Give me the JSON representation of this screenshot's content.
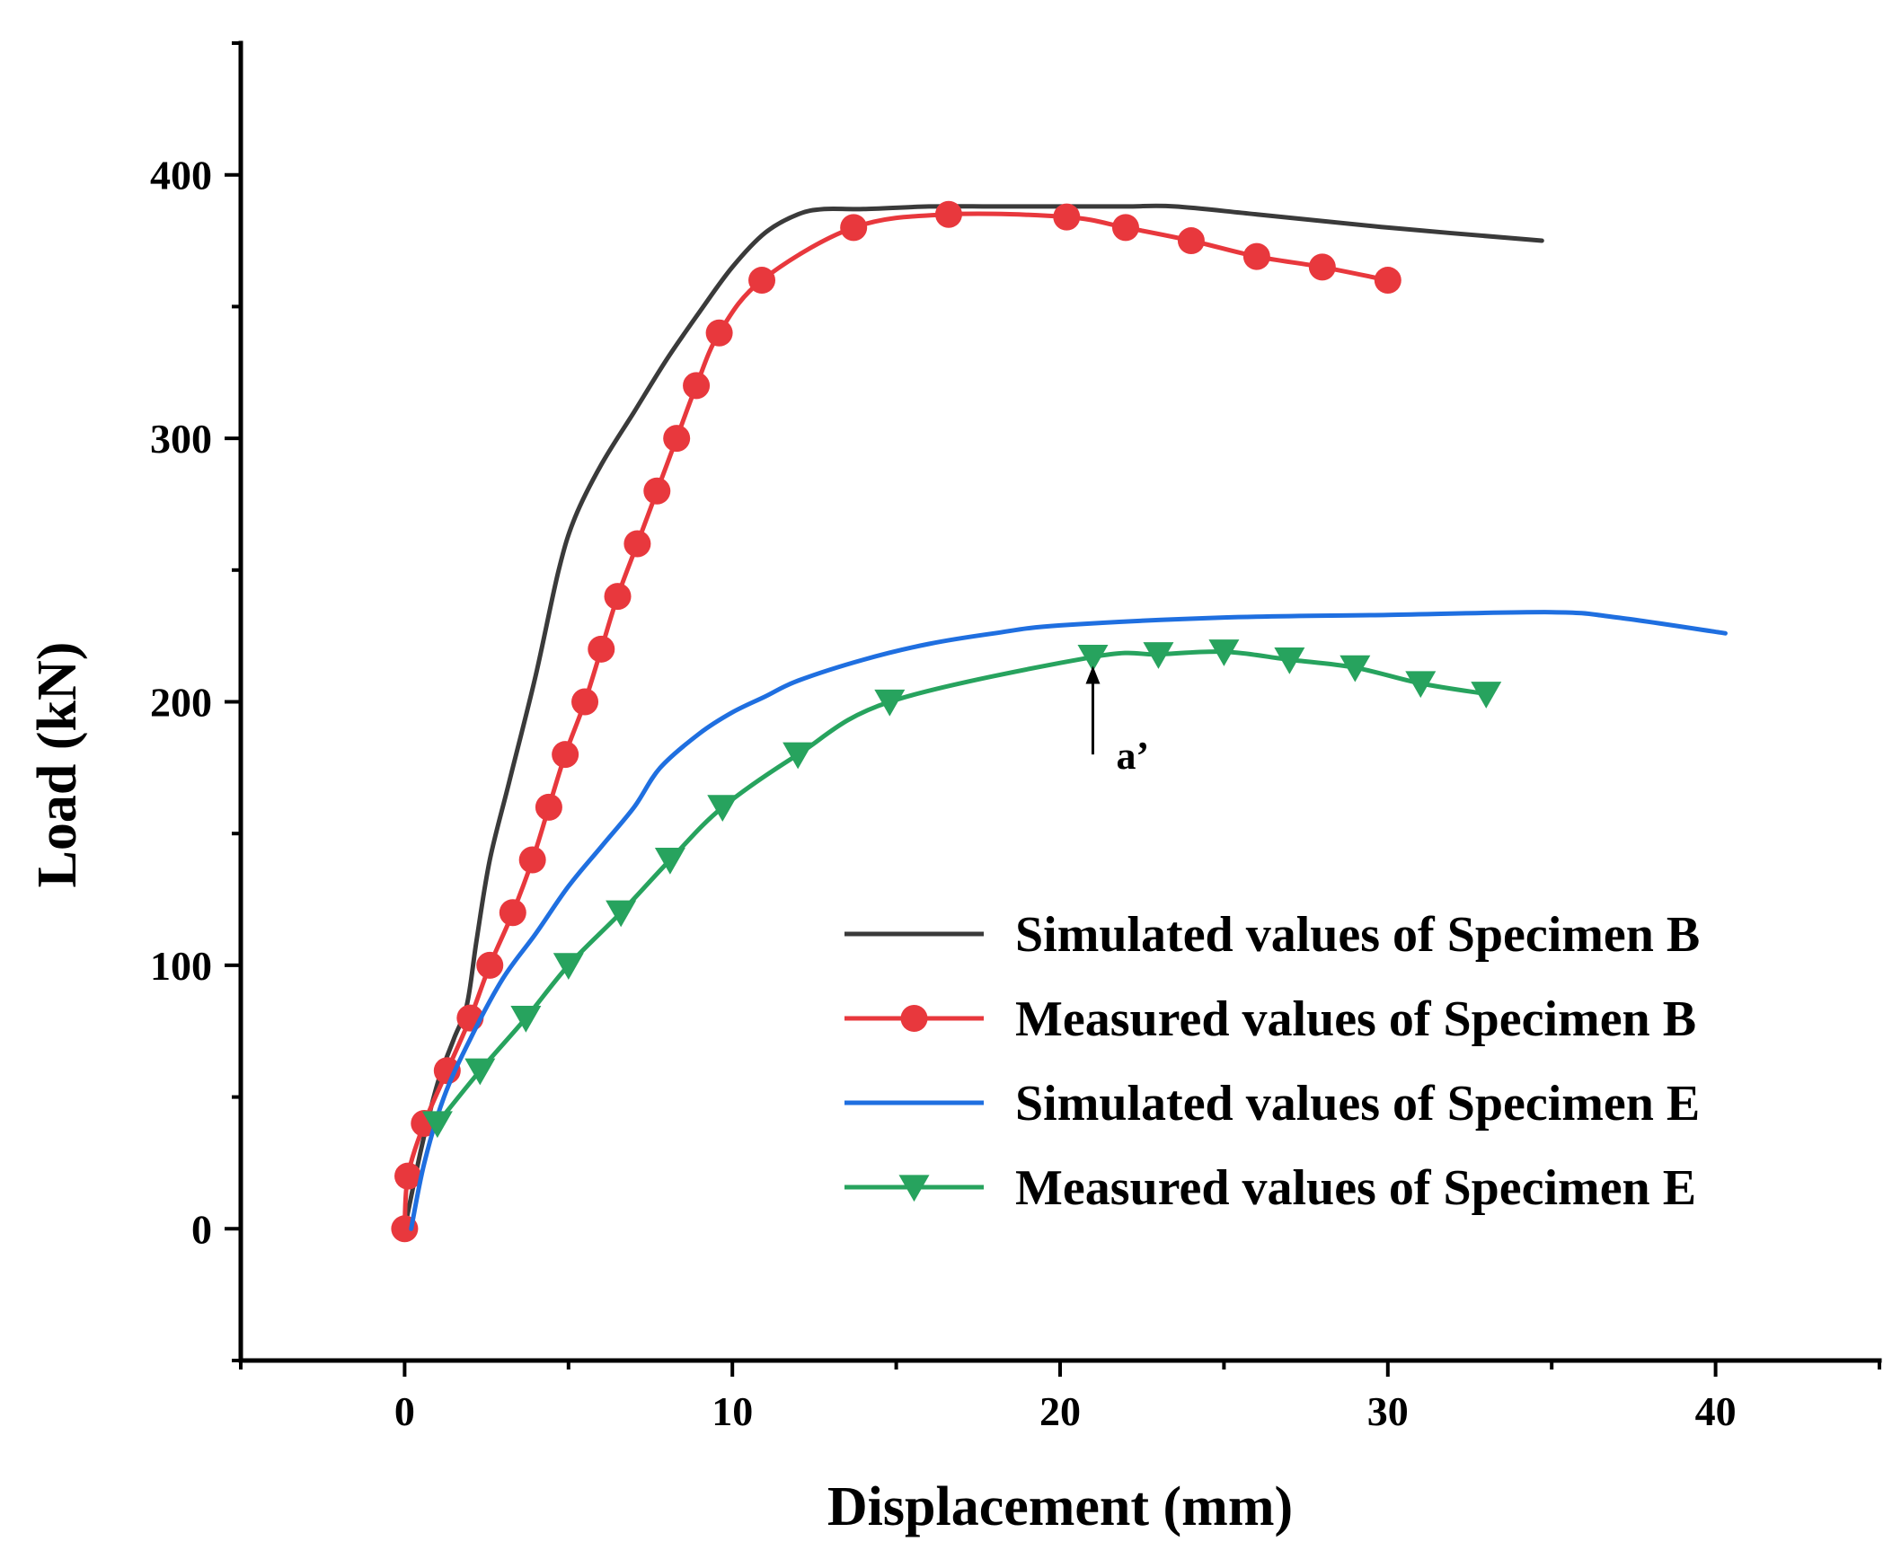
{
  "chart_data": {
    "type": "line",
    "title": "",
    "xlabel": "Displacement (mm)",
    "ylabel": "Load (kN)",
    "xlim": [
      -5,
      45
    ],
    "ylim": [
      -50,
      450
    ],
    "xticks": [
      0,
      10,
      20,
      30,
      40
    ],
    "yticks": [
      0,
      100,
      200,
      300,
      400
    ],
    "grid": false,
    "legend_position": "bottom-right",
    "series": [
      {
        "name": "Simulated values of Specimen B",
        "color": "#3a3a3a",
        "marker": "none",
        "x": [
          0,
          0.5,
          1,
          1.5,
          1.9,
          2.2,
          2.6,
          3.2,
          4,
          4.7,
          5.2,
          6,
          7,
          8,
          9,
          10,
          11,
          12,
          12.8,
          14,
          16,
          18,
          20,
          22,
          23.5,
          26,
          30,
          34.7
        ],
        "y": [
          0,
          30,
          55,
          72,
          85,
          110,
          140,
          170,
          210,
          250,
          270,
          290,
          310,
          330,
          348,
          365,
          378,
          385,
          387,
          387,
          388,
          388,
          388,
          388,
          388,
          385,
          380,
          375
        ]
      },
      {
        "name": "Measured values of Specimen B",
        "color": "#e8383d",
        "marker": "circle",
        "x": [
          0,
          0.1,
          0.6,
          1.3,
          2,
          2.6,
          3.3,
          3.9,
          4.4,
          4.9,
          5.5,
          6,
          6.5,
          7.1,
          7.7,
          8.3,
          8.9,
          9.6,
          10.9,
          13.7,
          16.6,
          20.2,
          22,
          24,
          26,
          28,
          30
        ],
        "y": [
          0,
          20,
          40,
          60,
          80,
          100,
          120,
          140,
          160,
          180,
          200,
          220,
          240,
          260,
          280,
          300,
          320,
          340,
          360,
          380,
          385,
          384,
          380,
          375,
          369,
          365,
          360
        ]
      },
      {
        "name": "Simulated values of Specimen E",
        "color": "#1f6fe0",
        "marker": "none",
        "x": [
          0.2,
          0.6,
          1.2,
          2,
          3,
          4,
          5,
          6,
          7,
          7.8,
          9,
          10,
          11,
          12,
          14,
          16,
          18,
          20,
          25,
          30,
          35,
          37,
          40.3
        ],
        "y": [
          0,
          25,
          50,
          72,
          95,
          112,
          130,
          145,
          160,
          175,
          188,
          196,
          202,
          208,
          216,
          222,
          226,
          229,
          232,
          233,
          234,
          232,
          226
        ]
      },
      {
        "name": "Measured values of Specimen E",
        "color": "#27a35e",
        "marker": "triangle-down",
        "x": [
          1,
          2.3,
          3.7,
          5,
          6.6,
          8.1,
          9.7,
          12,
          14.8,
          21,
          23,
          25,
          27,
          29,
          31,
          33
        ],
        "y": [
          40,
          60,
          80,
          100,
          120,
          140,
          160,
          180,
          200,
          217,
          218,
          219,
          216,
          213,
          207,
          203
        ]
      }
    ],
    "annotations": [
      {
        "text": "a’",
        "x": 21,
        "y_tip": 215,
        "y_base": 180
      }
    ]
  }
}
